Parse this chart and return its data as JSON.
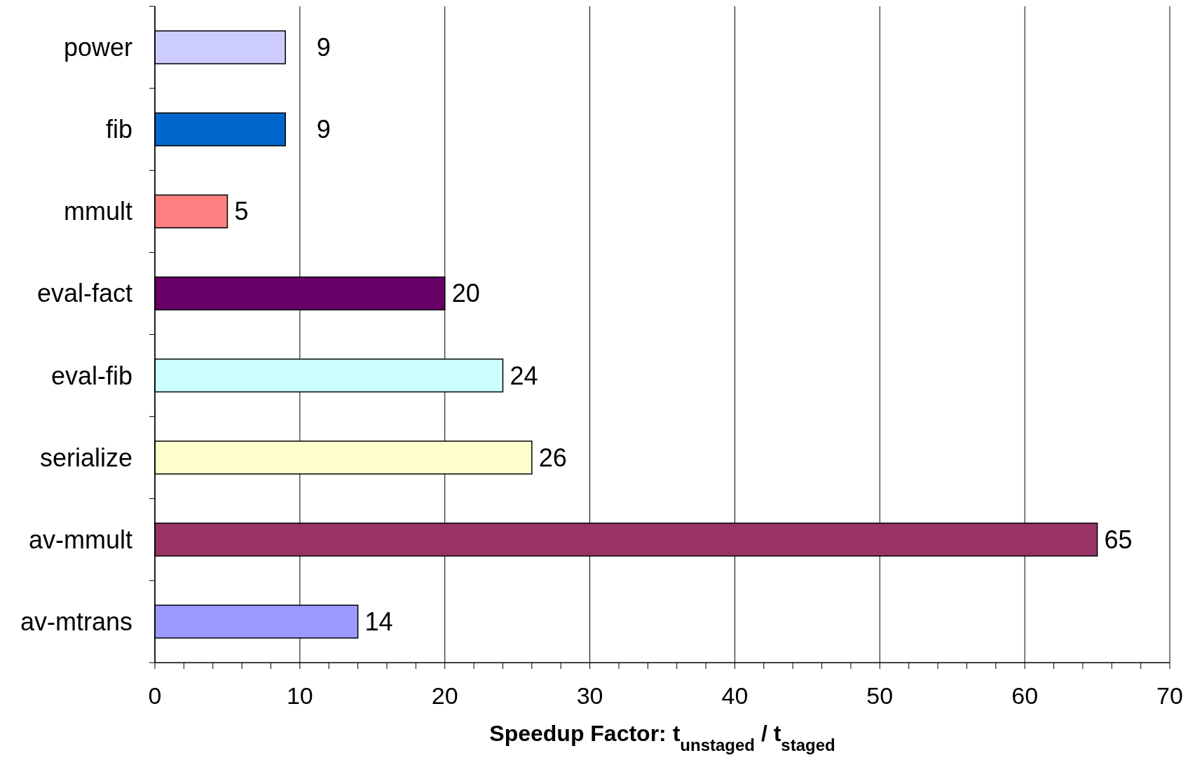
{
  "chart_data": {
    "type": "bar",
    "orientation": "horizontal",
    "xlabel": "Speedup Factor: t$_{unstaged}$ / t$_{staged}$",
    "categories": [
      "power",
      "fib",
      "mmult",
      "eval-fact",
      "eval-fib",
      "serialize",
      "av-mmult",
      "av-mtrans"
    ],
    "values": [
      9,
      9,
      5,
      20,
      24,
      26,
      65,
      14
    ],
    "colors": [
      "#ccccff",
      "#0066cc",
      "#ff8080",
      "#660066",
      "#ccffff",
      "#ffffcc",
      "#993366",
      "#9999ff"
    ],
    "data_labels": true,
    "xlim": [
      0,
      70
    ],
    "xticks": [
      0,
      {
        "value": 2,
        "label": null
      },
      {
        "value": 4,
        "label": null
      },
      {
        "value": 6,
        "label": null
      },
      {
        "value": 8,
        "label": null
      },
      10,
      {
        "value": 12,
        "label": null
      },
      {
        "value": 14,
        "label": null
      },
      {
        "value": 16,
        "label": null
      },
      {
        "value": 18,
        "label": null
      },
      20,
      {
        "value": 22,
        "label": null
      },
      {
        "value": 24,
        "label": null
      },
      {
        "value": 26,
        "label": null
      },
      {
        "value": 28,
        "label": null
      },
      30,
      {
        "value": 32,
        "label": null
      },
      {
        "value": 34,
        "label": null
      },
      {
        "value": 36,
        "label": null
      },
      {
        "value": 38,
        "label": null
      },
      40,
      {
        "value": 42,
        "label": null
      },
      {
        "value": 44,
        "label": null
      },
      {
        "value": 46,
        "label": null
      },
      {
        "value": 48,
        "label": null
      },
      50,
      {
        "value": 52,
        "label": null
      },
      {
        "value": 54,
        "label": null
      },
      {
        "value": 56,
        "label": null
      },
      {
        "value": 58,
        "label": null
      },
      60,
      {
        "value": 62,
        "label": null
      },
      {
        "value": 64,
        "label": null
      },
      {
        "value": 66,
        "label": null
      },
      {
        "value": 68,
        "label": null
      },
      70
    ],
    "grid": "x"
  }
}
